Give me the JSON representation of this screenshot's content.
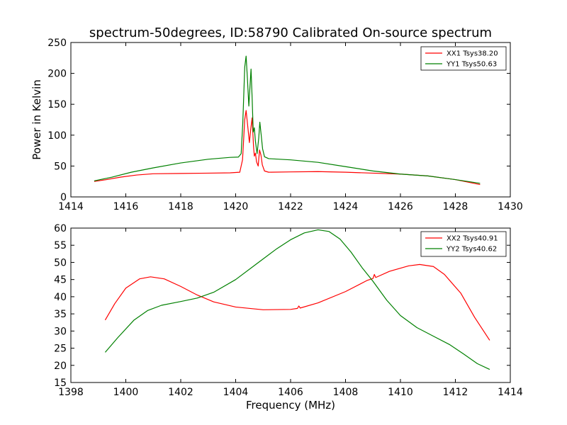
{
  "figure": {
    "title": "spectrum-50degrees, ID:58790 Calibrated On-source spectrum",
    "ylabel": "Power in Kelvin",
    "xlabel": "Frequency (MHz)"
  },
  "chart_data": [
    {
      "type": "line",
      "xlim": [
        1414,
        1430
      ],
      "ylim": [
        0,
        250
      ],
      "xticks": [
        "1414",
        "1416",
        "1418",
        "1420",
        "1422",
        "1424",
        "1426",
        "1428",
        "1430"
      ],
      "yticks": [
        "0",
        "50",
        "100",
        "150",
        "200",
        "250"
      ],
      "ylabel": "Power in Kelvin",
      "legend_position": "top-right",
      "grid": false,
      "series": [
        {
          "name": "XX1 Tsys38.20",
          "color": "#ff0000",
          "points": [
            [
              1414.85,
              25
            ],
            [
              1415.3,
              28
            ],
            [
              1415.8,
              32
            ],
            [
              1416.4,
              35.5
            ],
            [
              1417.0,
              37.5
            ],
            [
              1418.0,
              38
            ],
            [
              1419.0,
              38.5
            ],
            [
              1419.8,
              39
            ],
            [
              1420.15,
              40
            ],
            [
              1420.25,
              60
            ],
            [
              1420.33,
              125
            ],
            [
              1420.38,
              140
            ],
            [
              1420.45,
              110
            ],
            [
              1420.5,
              88
            ],
            [
              1420.55,
              110
            ],
            [
              1420.6,
              128
            ],
            [
              1420.65,
              82
            ],
            [
              1420.68,
              66
            ],
            [
              1420.72,
              71
            ],
            [
              1420.76,
              57
            ],
            [
              1420.82,
              50
            ],
            [
              1420.87,
              76
            ],
            [
              1420.92,
              68
            ],
            [
              1420.97,
              52
            ],
            [
              1421.05,
              42
            ],
            [
              1421.2,
              40
            ],
            [
              1422.0,
              40.5
            ],
            [
              1423.0,
              41
            ],
            [
              1424.0,
              40
            ],
            [
              1425.0,
              38.5
            ],
            [
              1426.0,
              37
            ],
            [
              1427.0,
              34
            ],
            [
              1428.0,
              28
            ],
            [
              1428.9,
              20
            ]
          ]
        },
        {
          "name": "YY1 Tsys50.63",
          "color": "#008000",
          "points": [
            [
              1414.85,
              26
            ],
            [
              1415.5,
              32
            ],
            [
              1416.2,
              40
            ],
            [
              1417.0,
              47
            ],
            [
              1418.0,
              55
            ],
            [
              1419.0,
              61
            ],
            [
              1419.8,
              64
            ],
            [
              1420.1,
              64.5
            ],
            [
              1420.2,
              70
            ],
            [
              1420.26,
              120
            ],
            [
              1420.33,
              210
            ],
            [
              1420.38,
              228
            ],
            [
              1420.43,
              190
            ],
            [
              1420.48,
              147
            ],
            [
              1420.53,
              185
            ],
            [
              1420.56,
              207
            ],
            [
              1420.6,
              160
            ],
            [
              1420.64,
              105
            ],
            [
              1420.68,
              112
            ],
            [
              1420.72,
              90
            ],
            [
              1420.78,
              70
            ],
            [
              1420.84,
              95
            ],
            [
              1420.88,
              121
            ],
            [
              1420.93,
              100
            ],
            [
              1420.98,
              78
            ],
            [
              1421.05,
              65
            ],
            [
              1421.2,
              62
            ],
            [
              1422.0,
              60
            ],
            [
              1423.0,
              56
            ],
            [
              1424.0,
              49
            ],
            [
              1425.0,
              42
            ],
            [
              1426.0,
              37
            ],
            [
              1427.0,
              34
            ],
            [
              1428.0,
              28
            ],
            [
              1428.9,
              22
            ]
          ]
        }
      ]
    },
    {
      "type": "line",
      "xlim": [
        1398,
        1414
      ],
      "ylim": [
        15,
        60
      ],
      "xticks": [
        "1398",
        "1400",
        "1402",
        "1404",
        "1406",
        "1408",
        "1410",
        "1412",
        "1414"
      ],
      "yticks": [
        "15",
        "20",
        "25",
        "30",
        "35",
        "40",
        "45",
        "50",
        "55",
        "60"
      ],
      "xlabel": "Frequency (MHz)",
      "legend_position": "top-right",
      "grid": false,
      "series": [
        {
          "name": "XX2 Tsys40.91",
          "color": "#ff0000",
          "points": [
            [
              1399.25,
              33.2
            ],
            [
              1399.6,
              38
            ],
            [
              1400.0,
              42.5
            ],
            [
              1400.5,
              45.2
            ],
            [
              1400.9,
              45.8
            ],
            [
              1401.4,
              45.2
            ],
            [
              1402.0,
              43
            ],
            [
              1402.6,
              40.5
            ],
            [
              1403.2,
              38.5
            ],
            [
              1404.0,
              37
            ],
            [
              1405.0,
              36.2
            ],
            [
              1406.0,
              36.3
            ],
            [
              1406.25,
              36.6
            ],
            [
              1406.3,
              37.3
            ],
            [
              1406.35,
              36.7
            ],
            [
              1407.0,
              38.2
            ],
            [
              1408.0,
              41.5
            ],
            [
              1408.8,
              44.8
            ],
            [
              1409.0,
              45.3
            ],
            [
              1409.05,
              46.5
            ],
            [
              1409.1,
              45.6
            ],
            [
              1409.6,
              47.4
            ],
            [
              1410.3,
              49
            ],
            [
              1410.7,
              49.4
            ],
            [
              1411.2,
              48.8
            ],
            [
              1411.6,
              46.5
            ],
            [
              1412.2,
              41
            ],
            [
              1412.7,
              34
            ],
            [
              1413.25,
              27.3
            ]
          ]
        },
        {
          "name": "YY2 Tsys40.62",
          "color": "#008000",
          "points": [
            [
              1399.25,
              23.8
            ],
            [
              1399.7,
              28
            ],
            [
              1400.3,
              33.2
            ],
            [
              1400.8,
              36
            ],
            [
              1401.3,
              37.5
            ],
            [
              1402.0,
              38.6
            ],
            [
              1402.6,
              39.6
            ],
            [
              1403.2,
              41.3
            ],
            [
              1404.0,
              45
            ],
            [
              1404.8,
              49.8
            ],
            [
              1405.5,
              54
            ],
            [
              1406.0,
              56.6
            ],
            [
              1406.5,
              58.6
            ],
            [
              1407.0,
              59.5
            ],
            [
              1407.4,
              59
            ],
            [
              1407.8,
              56.8
            ],
            [
              1408.2,
              53
            ],
            [
              1408.6,
              48.5
            ],
            [
              1409.0,
              44.5
            ],
            [
              1409.5,
              39
            ],
            [
              1410.0,
              34.5
            ],
            [
              1410.6,
              31
            ],
            [
              1411.2,
              28.5
            ],
            [
              1411.8,
              26
            ],
            [
              1412.3,
              23.3
            ],
            [
              1412.8,
              20.5
            ],
            [
              1413.25,
              18.8
            ]
          ]
        }
      ]
    }
  ]
}
